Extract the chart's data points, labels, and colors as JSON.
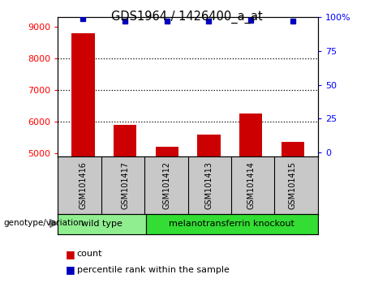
{
  "title": "GDS1964 / 1426400_a_at",
  "samples": [
    "GSM101416",
    "GSM101417",
    "GSM101412",
    "GSM101413",
    "GSM101414",
    "GSM101415"
  ],
  "counts": [
    8800,
    5900,
    5200,
    5600,
    6250,
    5350
  ],
  "percentile_ranks": [
    99,
    97,
    97,
    97,
    98,
    97
  ],
  "ylim_left": [
    4900,
    9300
  ],
  "ylim_right": [
    -3,
    100
  ],
  "yticks_left": [
    5000,
    6000,
    7000,
    8000,
    9000
  ],
  "yticks_right": [
    0,
    25,
    50,
    75,
    100
  ],
  "groups": [
    {
      "label": "wild type",
      "samples": [
        0,
        1
      ],
      "color": "#90EE90"
    },
    {
      "label": "melanotransferrin knockout",
      "samples": [
        2,
        3,
        4,
        5
      ],
      "color": "#33DD33"
    }
  ],
  "bar_color": "#CC0000",
  "dot_color": "#0000BB",
  "plot_bg": "white",
  "label_area_color": "#C8C8C8",
  "label_count": "count",
  "label_percentile": "percentile rank within the sample",
  "group_label": "genotype/variation"
}
